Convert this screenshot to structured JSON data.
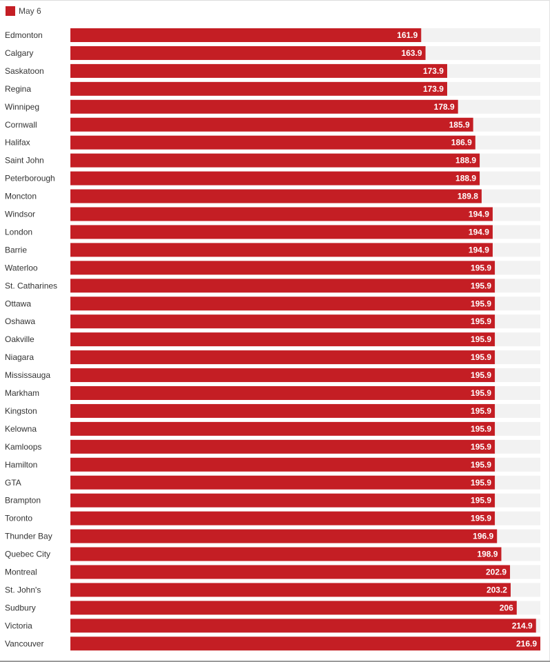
{
  "colors": {
    "bar": "#c41e24",
    "track": "#f2f2f2"
  },
  "chart_data": {
    "type": "bar",
    "orientation": "horizontal",
    "legend": {
      "position": "top-left"
    },
    "xlim": [
      0,
      216.9
    ],
    "grid": false,
    "categories": [
      "Edmonton",
      "Calgary",
      "Saskatoon",
      "Regina",
      "Winnipeg",
      "Cornwall",
      "Halifax",
      "Saint John",
      "Peterborough",
      "Moncton",
      "Windsor",
      "London",
      "Barrie",
      "Waterloo",
      "St. Catharines",
      "Ottawa",
      "Oshawa",
      "Oakville",
      "Niagara",
      "Mississauga",
      "Markham",
      "Kingston",
      "Kelowna",
      "Kamloops",
      "Hamilton",
      "GTA",
      "Brampton",
      "Toronto",
      "Thunder Bay",
      "Quebec City",
      "Montreal",
      "St. John's",
      "Sudbury",
      "Victoria",
      "Vancouver"
    ],
    "series": [
      {
        "name": "May 6",
        "values": [
          161.9,
          163.9,
          173.9,
          173.9,
          178.9,
          185.9,
          186.9,
          188.9,
          188.9,
          189.8,
          194.9,
          194.9,
          194.9,
          195.9,
          195.9,
          195.9,
          195.9,
          195.9,
          195.9,
          195.9,
          195.9,
          195.9,
          195.9,
          195.9,
          195.9,
          195.9,
          195.9,
          195.9,
          196.9,
          198.9,
          202.9,
          203.2,
          206,
          214.9,
          216.9
        ],
        "value_labels": [
          "161.9",
          "163.9",
          "173.9",
          "173.9",
          "178.9",
          "185.9",
          "186.9",
          "188.9",
          "188.9",
          "189.8",
          "194.9",
          "194.9",
          "194.9",
          "195.9",
          "195.9",
          "195.9",
          "195.9",
          "195.9",
          "195.9",
          "195.9",
          "195.9",
          "195.9",
          "195.9",
          "195.9",
          "195.9",
          "195.9",
          "195.9",
          "195.9",
          "196.9",
          "198.9",
          "202.9",
          "203.2",
          "206",
          "214.9",
          "216.9"
        ]
      }
    ]
  }
}
